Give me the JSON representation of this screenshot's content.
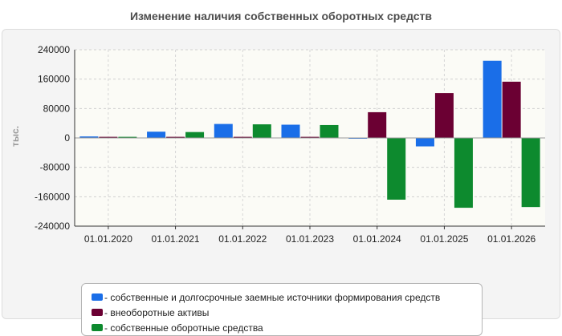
{
  "chart_data": {
    "type": "bar",
    "title": "Изменение наличия собственных оборотных средств",
    "ylabel": "тыс.",
    "xlabel": "",
    "ylim": [
      -240000,
      240000
    ],
    "yticks": [
      240000,
      160000,
      80000,
      0,
      -80000,
      -160000,
      -240000
    ],
    "ytick_labels": [
      "240000",
      "160000",
      "80000",
      "0",
      "-80000",
      "-160000",
      "-240000"
    ],
    "categories": [
      "01.01.2020",
      "01.01.2021",
      "01.01.2022",
      "01.01.2023",
      "01.01.2024",
      "01.01.2025",
      "01.01.2026"
    ],
    "series": [
      {
        "name": "- собственные и долгосрочные заемные источники формирования средств",
        "color": "#1a6ee8",
        "values": [
          4000,
          17000,
          38000,
          36000,
          -2000,
          -23000,
          210000
        ]
      },
      {
        "name": "- внеоборотные активы",
        "color": "#6b0033",
        "values": [
          3000,
          3000,
          3000,
          3000,
          70000,
          122000,
          153000
        ]
      },
      {
        "name": "- собственные оборотные средства",
        "color": "#0d8a2e",
        "values": [
          3000,
          16000,
          37000,
          35000,
          -168000,
          -190000,
          -188000
        ]
      }
    ],
    "grid": true,
    "legend_position": "bottom"
  }
}
